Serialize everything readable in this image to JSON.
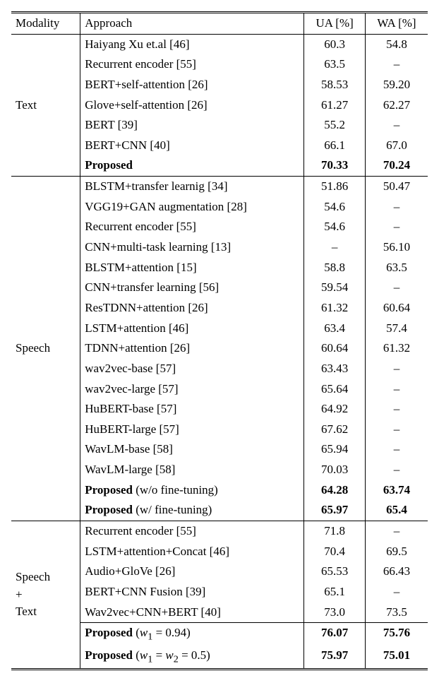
{
  "columns": {
    "modality": "Modality",
    "approach": "Approach",
    "ua": "UA [%]",
    "wa": "WA [%]"
  },
  "groups": [
    {
      "key": "text",
      "modality": "Text",
      "rows": [
        {
          "approach": "Haiyang Xu et.al [46]",
          "ua": "60.3",
          "wa": "54.8",
          "bold": false
        },
        {
          "approach": "Recurrent encoder [55]",
          "ua": "63.5",
          "wa": "–",
          "bold": false
        },
        {
          "approach": "BERT+self-attention [26]",
          "ua": "58.53",
          "wa": "59.20",
          "bold": false
        },
        {
          "approach": "Glove+self-attention [26]",
          "ua": "61.27",
          "wa": "62.27",
          "bold": false
        },
        {
          "approach": "BERT [39]",
          "ua": "55.2",
          "wa": "–",
          "bold": false
        },
        {
          "approach": "BERT+CNN [40]",
          "ua": "66.1",
          "wa": "67.0",
          "bold": false
        },
        {
          "approach": "Proposed",
          "ua": "70.33",
          "wa": "70.24",
          "bold": true
        }
      ]
    },
    {
      "key": "speech",
      "modality": "Speech",
      "rows": [
        {
          "approach": "BLSTM+transfer learnig [34]",
          "ua": "51.86",
          "wa": "50.47",
          "bold": false
        },
        {
          "approach": "VGG19+GAN augmentation [28]",
          "ua": "54.6",
          "wa": "–",
          "bold": false
        },
        {
          "approach": "Recurrent encoder [55]",
          "ua": "54.6",
          "wa": "–",
          "bold": false
        },
        {
          "approach": "CNN+multi-task learning [13]",
          "ua": "–",
          "wa": "56.10",
          "bold": false
        },
        {
          "approach": "BLSTM+attention [15]",
          "ua": "58.8",
          "wa": "63.5",
          "bold": false
        },
        {
          "approach": "CNN+transfer learning [56]",
          "ua": "59.54",
          "wa": "–",
          "bold": false
        },
        {
          "approach": "ResTDNN+attention [26]",
          "ua": "61.32",
          "wa": "60.64",
          "bold": false
        },
        {
          "approach": "LSTM+attention [46]",
          "ua": "63.4",
          "wa": "57.4",
          "bold": false
        },
        {
          "approach": "TDNN+attention [26]",
          "ua": "60.64",
          "wa": "61.32",
          "bold": false
        },
        {
          "approach": "wav2vec-base [57]",
          "ua": "63.43",
          "wa": "–",
          "bold": false
        },
        {
          "approach": "wav2vec-large [57]",
          "ua": "65.64",
          "wa": "–",
          "bold": false
        },
        {
          "approach": "HuBERT-base [57]",
          "ua": "64.92",
          "wa": "–",
          "bold": false
        },
        {
          "approach": "HuBERT-large [57]",
          "ua": "67.62",
          "wa": "–",
          "bold": false
        },
        {
          "approach": "WavLM-base [58]",
          "ua": "65.94",
          "wa": "–",
          "bold": false
        },
        {
          "approach": "WavLM-large [58]",
          "ua": "70.03",
          "wa": "–",
          "bold": false
        },
        {
          "approach_html": "<span class='bold'>Proposed</span> (w/o fine-tuning)",
          "ua": "64.28",
          "wa": "63.74",
          "bold_nums": true
        },
        {
          "approach_html": "<span class='bold'>Proposed</span> (w/ fine-tuning)",
          "ua": "65.97",
          "wa": "65.4",
          "bold_nums": true
        }
      ]
    },
    {
      "key": "speech-text",
      "modality_html": "Speech<br>+<br>Text",
      "rows": [
        {
          "approach": "Recurrent encoder [55]",
          "ua": "71.8",
          "wa": "–",
          "bold": false
        },
        {
          "approach": "LSTM+attention+Concat [46]",
          "ua": "70.4",
          "wa": "69.5",
          "bold": false
        },
        {
          "approach": "Audio+GloVe [26]",
          "ua": "65.53",
          "wa": "66.43",
          "bold": false
        },
        {
          "approach": "BERT+CNN Fusion [39]",
          "ua": "65.1",
          "wa": "–",
          "bold": false
        },
        {
          "approach": "Wav2vec+CNN+BERT [40]",
          "ua": "73.0",
          "wa": "73.5",
          "bold": false,
          "sep_after": true
        },
        {
          "approach_html": "<span class='bold'>Proposed</span> (<i>w</i><sub>1</sub> = 0.94)",
          "ua": "76.07",
          "wa": "75.76",
          "bold_nums": true
        },
        {
          "approach_html": "<span class='bold'>Proposed</span> (<i>w</i><sub>1</sub> = <i>w</i><sub>2</sub> = 0.5)",
          "ua": "75.97",
          "wa": "75.01",
          "bold_nums": true
        }
      ]
    }
  ]
}
